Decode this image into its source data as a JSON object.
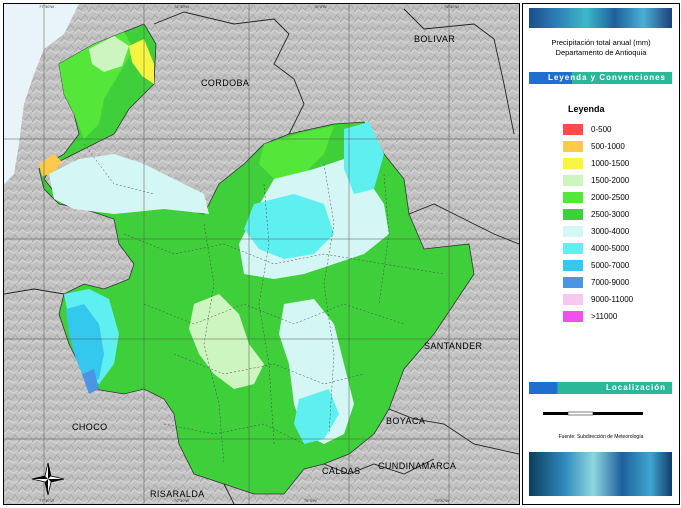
{
  "map": {
    "departments": {
      "bolivar": "BOLIVAR",
      "cordoba": "CORDOBA",
      "santander": "SANTANDER",
      "choco": "CHOCO",
      "boyaca": "BOYACA",
      "cundinamarca": "CUNDINAMARCA",
      "caldas": "CALDAS",
      "risaralda": "RISARALDA"
    },
    "top_ticks": [
      "77°30'W",
      "76°30'W",
      "76°0'W",
      "75°30'W",
      "75°0'W",
      "74°30'W"
    ],
    "bottom_ticks": [
      "77°30'W",
      "76°30'W",
      "76°0'W",
      "75°30'W",
      "75°0'W",
      "74°30'W"
    ]
  },
  "legend_panel": {
    "title_line1": "Precipitación total anual (mm)",
    "title_line2": "Departamento de Antioquia",
    "section_legend": "Leyenda y Convenciones",
    "legend_heading": "Leyenda",
    "items": [
      {
        "label": "0-500",
        "color": "#ff4b4b"
      },
      {
        "label": "500-1000",
        "color": "#ffc94a"
      },
      {
        "label": "1000-1500",
        "color": "#f7f542"
      },
      {
        "label": "1500-2000",
        "color": "#cdf5c0"
      },
      {
        "label": "2000-2500",
        "color": "#55e63a"
      },
      {
        "label": "2500-3000",
        "color": "#3ecf3a"
      },
      {
        "label": "3000-4000",
        "color": "#d4f7f5"
      },
      {
        "label": "4000-5000",
        "color": "#5ef0f0"
      },
      {
        "label": "5000-7000",
        "color": "#35c8ee"
      },
      {
        "label": "7000-9000",
        "color": "#4b94e6"
      },
      {
        "label": "9000-11000",
        "color": "#f6c8f0"
      },
      {
        "label": ">11000",
        "color": "#f24ff0"
      }
    ],
    "section_location": "Localización",
    "source": "Fuente: Subdirección de Meteorología",
    "colors": {
      "banner_dark": "#1a4e8c",
      "banner_light": "#3db8c9",
      "bar_blue": "#1f6fd1",
      "bar_green": "#2bb89a"
    }
  }
}
